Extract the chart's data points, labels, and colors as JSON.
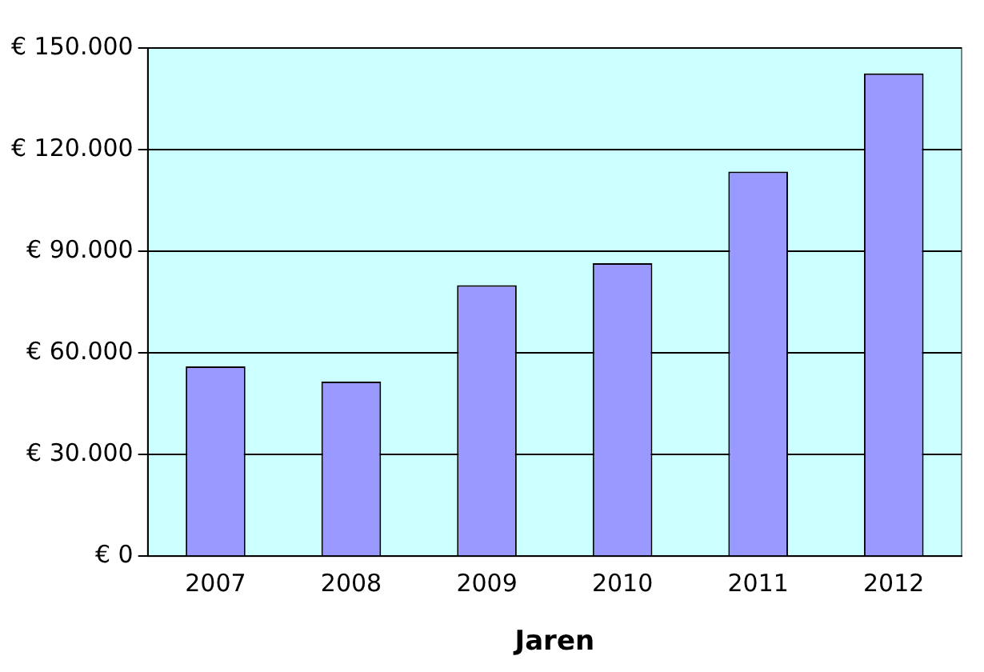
{
  "chart_data": {
    "type": "bar",
    "xlabel": "Jaren",
    "categories": [
      "2007",
      "2008",
      "2009",
      "2010",
      "2011",
      "2012"
    ],
    "values": [
      56000,
      51500,
      80000,
      86500,
      113500,
      142500
    ],
    "color": "#9999ff",
    "ylim": [
      0,
      150000
    ],
    "yticks": [
      {
        "value": 0,
        "label": "€ 0"
      },
      {
        "value": 30000,
        "label": "€ 30.000"
      },
      {
        "value": 60000,
        "label": "€ 60.000"
      },
      {
        "value": 90000,
        "label": "€ 90.000"
      },
      {
        "value": 120000,
        "label": "€ 120.000"
      },
      {
        "value": 150000,
        "label": "€ 150.000"
      }
    ],
    "grid": "y",
    "legend": false
  }
}
